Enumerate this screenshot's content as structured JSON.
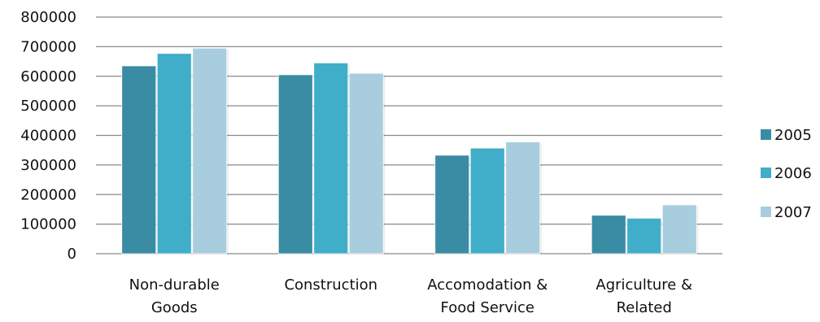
{
  "chart_data": {
    "type": "bar",
    "title": "",
    "xlabel": "",
    "ylabel": "",
    "categories": [
      [
        "Non-durable",
        "Goods"
      ],
      [
        "Construction"
      ],
      [
        "Accomodation &",
        "Food Service"
      ],
      [
        "Agriculture &",
        "Related"
      ]
    ],
    "series": [
      {
        "name": "2005",
        "color": "#3a8ba4",
        "values": [
          635000,
          605000,
          333000,
          130000
        ]
      },
      {
        "name": "2006",
        "color": "#40adc9",
        "values": [
          677000,
          645000,
          357000,
          120000
        ]
      },
      {
        "name": "2007",
        "color": "#a8cdde",
        "values": [
          695000,
          610000,
          378000,
          165000
        ]
      }
    ],
    "yticks": [
      "0",
      "100000",
      "200000",
      "300000",
      "400000",
      "500000",
      "600000",
      "700000",
      "800000"
    ],
    "ylim": [
      0,
      800000
    ],
    "grid": true,
    "legend_position": "right"
  }
}
